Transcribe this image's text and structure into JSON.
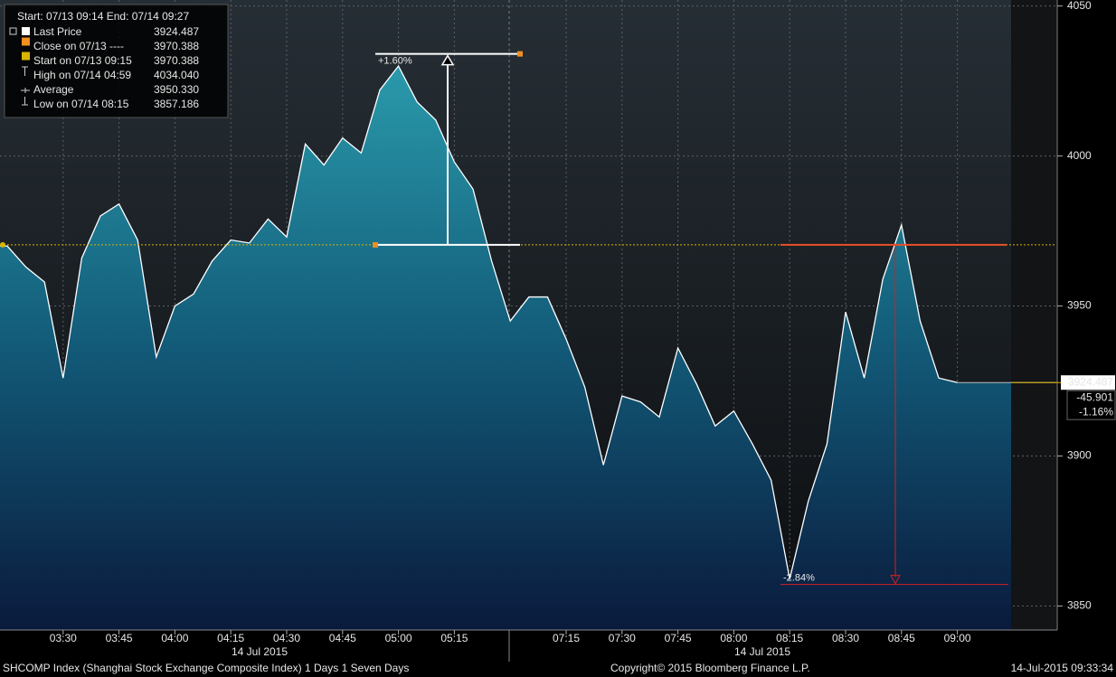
{
  "chart_data": {
    "type": "area",
    "header": "Start: 07/13 09:14 End: 07/14 09:27",
    "x": [
      "03:15",
      "03:20",
      "03:25",
      "03:30",
      "03:35",
      "03:40",
      "03:45",
      "03:50",
      "03:55",
      "04:00",
      "04:05",
      "04:10",
      "04:15",
      "04:20",
      "04:25",
      "04:30",
      "04:35",
      "04:40",
      "04:45",
      "04:50",
      "04:55",
      "05:00",
      "05:05",
      "05:10",
      "05:15",
      "05:20",
      "05:25",
      "07:00",
      "07:05",
      "07:10",
      "07:15",
      "07:20",
      "07:25",
      "07:30",
      "07:35",
      "07:40",
      "07:45",
      "07:50",
      "07:55",
      "08:00",
      "08:05",
      "08:10",
      "08:15",
      "08:20",
      "08:25",
      "08:30",
      "08:35",
      "08:40",
      "08:45",
      "08:50",
      "08:55",
      "09:00"
    ],
    "series": [
      {
        "name": "Last Price",
        "color": "#ffffff",
        "value_label": "3924.487",
        "values": [
          3970,
          3963,
          3958,
          3926,
          3966,
          3980,
          3984,
          3972,
          3933,
          3950,
          3954,
          3965,
          3972,
          3971,
          3979,
          3973,
          4004,
          3997,
          4006,
          4001,
          4022,
          4030,
          4018,
          4012,
          3998,
          3989,
          3965,
          3945,
          3953,
          3953,
          3939,
          3923,
          3897,
          3920,
          3918,
          3913,
          3936,
          3924,
          3910,
          3915,
          3904,
          3892,
          3859,
          3885,
          3904,
          3948,
          3926,
          3959,
          3977,
          3945,
          3926,
          3924.487
        ]
      }
    ],
    "stats": [
      {
        "name": "Close on 07/13 ----",
        "value": 3970.388,
        "label": "3970.388",
        "color": "#f0901e"
      },
      {
        "name": "Start on 07/13 09:15",
        "value": 3970.388,
        "label": "3970.388",
        "color": "#d9b400"
      },
      {
        "name": "High on 07/14 04:59",
        "value": 4034.04,
        "label": "4034.040"
      },
      {
        "name": "Average",
        "value": 3950.33,
        "label": "3950.330"
      },
      {
        "name": "Low on 07/14 08:15",
        "value": 3857.186,
        "label": "3857.186"
      }
    ],
    "change": -45.901,
    "change_pct": "-1.16%",
    "annotations": [
      "+1.60%",
      "-2.84%"
    ],
    "xticks": [
      "03:30",
      "03:45",
      "04:00",
      "04:15",
      "04:30",
      "04:45",
      "05:00",
      "05:15",
      "07:15",
      "07:30",
      "07:45",
      "08:00",
      "08:15",
      "08:30",
      "08:45",
      "09:00"
    ],
    "date_labels": [
      "14 Jul 2015",
      "14 Jul 2015"
    ],
    "ylim": [
      3842,
      4052
    ],
    "yticks": [
      3850,
      3900,
      3950,
      4000,
      4050
    ],
    "grid": true,
    "footer": {
      "left": "SHCOMP Index (Shanghai Stock Exchange Composite Index) 1 Days 1 Seven Days",
      "center": "Copyright© 2015 Bloomberg Finance L.P.",
      "right": "14-Jul-2015 09:33:34"
    }
  }
}
